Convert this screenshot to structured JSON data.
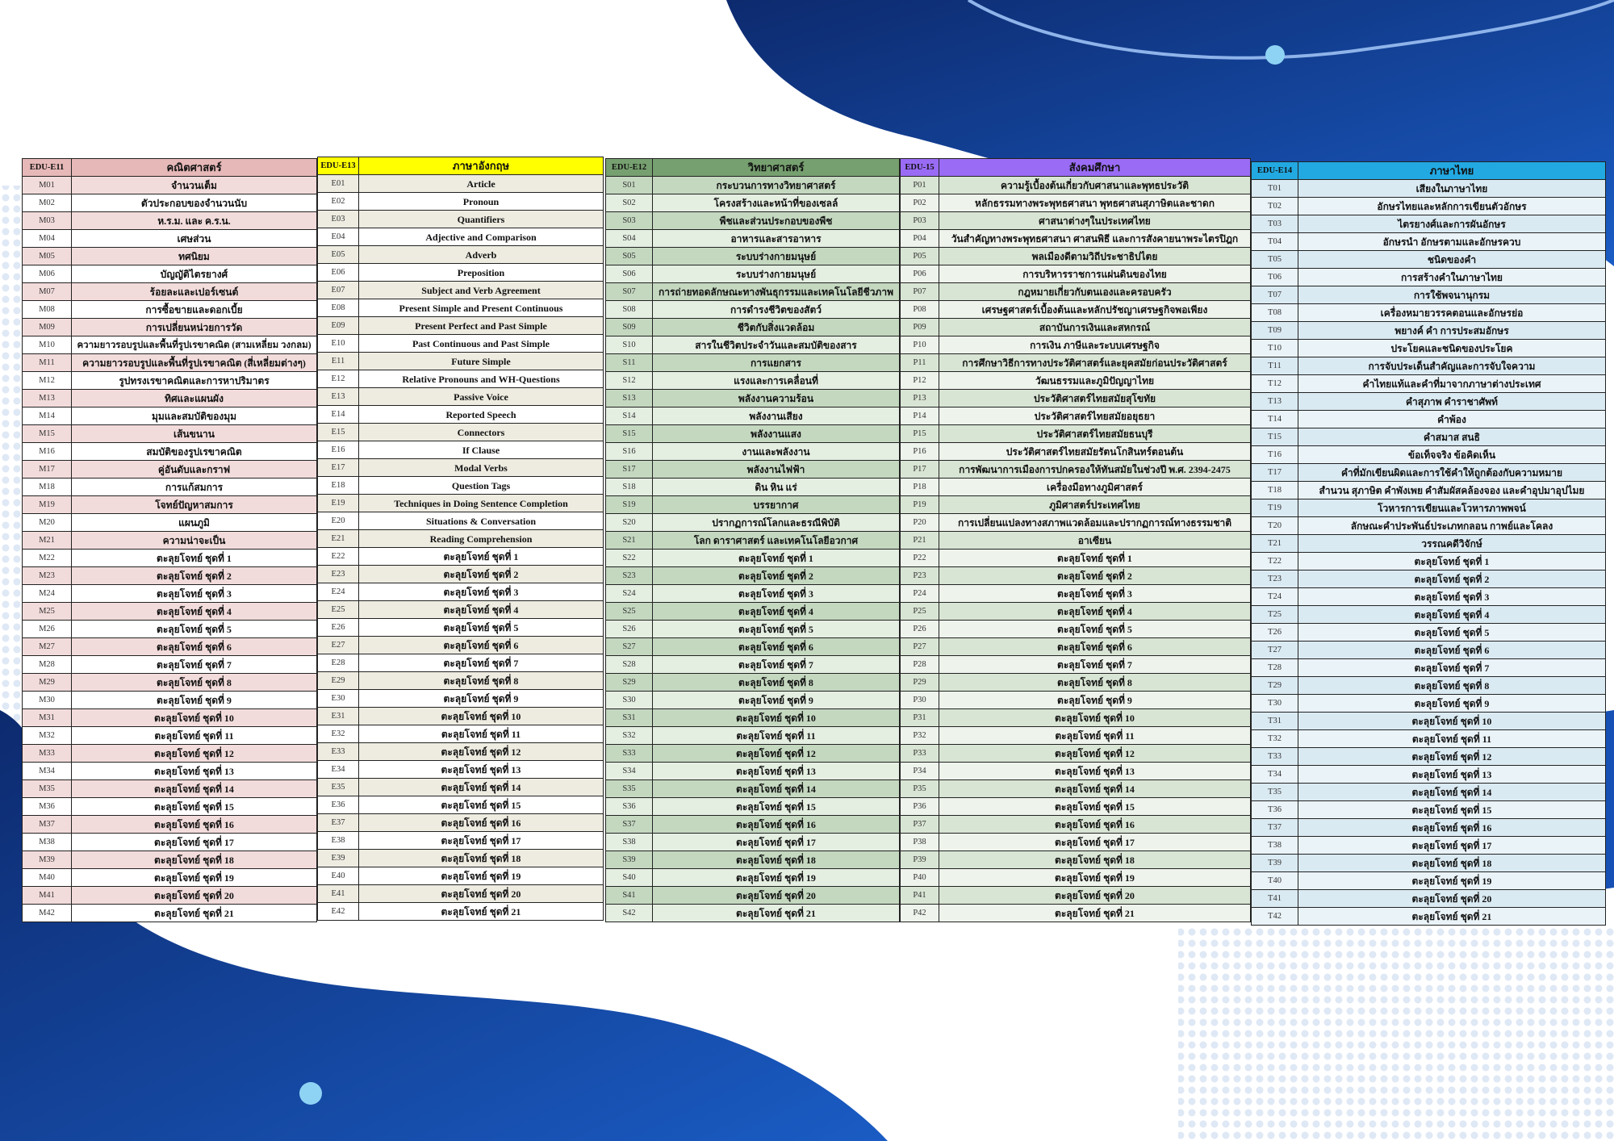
{
  "colors": {
    "background_dark": "#0d2a6e",
    "background_mid": "#1650b4",
    "accent_light": "#8fd3f4"
  },
  "tables": [
    {
      "code_header": "EDU-E11",
      "title": "คณิตศาสตร์",
      "header_color": "#e6b8b7",
      "row_a": "#f2dcdb",
      "row_b": "#ffffff",
      "rows": [
        [
          "M01",
          "จำนวนเต็ม"
        ],
        [
          "M02",
          "ตัวประกอบของจำนวนนับ"
        ],
        [
          "M03",
          "ห.ร.ม. และ ค.ร.น."
        ],
        [
          "M04",
          "เศษส่วน"
        ],
        [
          "M05",
          "ทศนิยม"
        ],
        [
          "M06",
          "บัญญัติไตรยางศ์"
        ],
        [
          "M07",
          "ร้อยละและเปอร์เซนต์"
        ],
        [
          "M08",
          "การซื้อขายและดอกเบี้ย"
        ],
        [
          "M09",
          "การเปลี่ยนหน่วยการวัด"
        ],
        [
          "M10",
          "ความยาวรอบรูปและพื้นที่รูปเรขาคณิต (สามเหลี่ยม วงกลม)"
        ],
        [
          "M11",
          "ความยาวรอบรูปและพื้นที่รูปเรขาคณิต (สี่เหลี่ยมต่างๆ)"
        ],
        [
          "M12",
          "รูปทรงเรขาคณิตและการหาปริมาตร"
        ],
        [
          "M13",
          "ทิศและแผนผัง"
        ],
        [
          "M14",
          "มุมและสมบัติของมุม"
        ],
        [
          "M15",
          "เส้นขนาน"
        ],
        [
          "M16",
          "สมบัติของรูปเรขาคณิต"
        ],
        [
          "M17",
          "คู่อันดับและกราฟ"
        ],
        [
          "M18",
          "การแก้สมการ"
        ],
        [
          "M19",
          "โจทย์ปัญหาสมการ"
        ],
        [
          "M20",
          "แผนภูมิ"
        ],
        [
          "M21",
          "ความน่าจะเป็น"
        ],
        [
          "M22",
          "ตะลุยโจทย์ ชุดที่ 1"
        ],
        [
          "M23",
          "ตะลุยโจทย์ ชุดที่ 2"
        ],
        [
          "M24",
          "ตะลุยโจทย์ ชุดที่ 3"
        ],
        [
          "M25",
          "ตะลุยโจทย์ ชุดที่ 4"
        ],
        [
          "M26",
          "ตะลุยโจทย์ ชุดที่ 5"
        ],
        [
          "M27",
          "ตะลุยโจทย์ ชุดที่ 6"
        ],
        [
          "M28",
          "ตะลุยโจทย์ ชุดที่ 7"
        ],
        [
          "M29",
          "ตะลุยโจทย์ ชุดที่ 8"
        ],
        [
          "M30",
          "ตะลุยโจทย์ ชุดที่ 9"
        ],
        [
          "M31",
          "ตะลุยโจทย์ ชุดที่ 10"
        ],
        [
          "M32",
          "ตะลุยโจทย์ ชุดที่ 11"
        ],
        [
          "M33",
          "ตะลุยโจทย์ ชุดที่ 12"
        ],
        [
          "M34",
          "ตะลุยโจทย์ ชุดที่ 13"
        ],
        [
          "M35",
          "ตะลุยโจทย์ ชุดที่ 14"
        ],
        [
          "M36",
          "ตะลุยโจทย์ ชุดที่ 15"
        ],
        [
          "M37",
          "ตะลุยโจทย์ ชุดที่ 16"
        ],
        [
          "M38",
          "ตะลุยโจทย์ ชุดที่ 17"
        ],
        [
          "M39",
          "ตะลุยโจทย์ ชุดที่ 18"
        ],
        [
          "M40",
          "ตะลุยโจทย์ ชุดที่ 19"
        ],
        [
          "M41",
          "ตะลุยโจทย์ ชุดที่ 20"
        ],
        [
          "M42",
          "ตะลุยโจทย์ ชุดที่ 21"
        ]
      ]
    },
    {
      "code_header": "EDU-E13",
      "title": "ภาษาอังกฤษ",
      "header_color": "#ffff00",
      "row_a": "#eeece1",
      "row_b": "#ffffff",
      "rows": [
        [
          "E01",
          "Article"
        ],
        [
          "E02",
          "Pronoun"
        ],
        [
          "E03",
          "Quantifiers"
        ],
        [
          "E04",
          "Adjective and Comparison"
        ],
        [
          "E05",
          "Adverb"
        ],
        [
          "E06",
          "Preposition"
        ],
        [
          "E07",
          "Subject and Verb Agreement"
        ],
        [
          "E08",
          "Present Simple and Present Continuous"
        ],
        [
          "E09",
          "Present Perfect and Past Simple"
        ],
        [
          "E10",
          "Past Continuous and Past Simple"
        ],
        [
          "E11",
          "Future Simple"
        ],
        [
          "E12",
          "Relative Pronouns and WH-Questions"
        ],
        [
          "E13",
          "Passive Voice"
        ],
        [
          "E14",
          "Reported Speech"
        ],
        [
          "E15",
          "Connectors"
        ],
        [
          "E16",
          "If Clause"
        ],
        [
          "E17",
          "Modal Verbs"
        ],
        [
          "E18",
          "Question Tags"
        ],
        [
          "E19",
          "Techniques in Doing Sentence Completion"
        ],
        [
          "E20",
          "Situations & Conversation"
        ],
        [
          "E21",
          "Reading Comprehension"
        ],
        [
          "E22",
          "ตะลุยโจทย์ ชุดที่ 1"
        ],
        [
          "E23",
          "ตะลุยโจทย์ ชุดที่ 2"
        ],
        [
          "E24",
          "ตะลุยโจทย์ ชุดที่ 3"
        ],
        [
          "E25",
          "ตะลุยโจทย์ ชุดที่ 4"
        ],
        [
          "E26",
          "ตะลุยโจทย์ ชุดที่ 5"
        ],
        [
          "E27",
          "ตะลุยโจทย์ ชุดที่ 6"
        ],
        [
          "E28",
          "ตะลุยโจทย์ ชุดที่ 7"
        ],
        [
          "E29",
          "ตะลุยโจทย์ ชุดที่ 8"
        ],
        [
          "E30",
          "ตะลุยโจทย์ ชุดที่ 9"
        ],
        [
          "E31",
          "ตะลุยโจทย์ ชุดที่ 10"
        ],
        [
          "E32",
          "ตะลุยโจทย์ ชุดที่ 11"
        ],
        [
          "E33",
          "ตะลุยโจทย์ ชุดที่ 12"
        ],
        [
          "E34",
          "ตะลุยโจทย์ ชุดที่ 13"
        ],
        [
          "E35",
          "ตะลุยโจทย์ ชุดที่ 14"
        ],
        [
          "E36",
          "ตะลุยโจทย์ ชุดที่ 15"
        ],
        [
          "E37",
          "ตะลุยโจทย์ ชุดที่ 16"
        ],
        [
          "E38",
          "ตะลุยโจทย์ ชุดที่ 17"
        ],
        [
          "E39",
          "ตะลุยโจทย์ ชุดที่ 18"
        ],
        [
          "E40",
          "ตะลุยโจทย์ ชุดที่ 19"
        ],
        [
          "E41",
          "ตะลุยโจทย์ ชุดที่ 20"
        ],
        [
          "E42",
          "ตะลุยโจทย์ ชุดที่ 21"
        ]
      ]
    },
    {
      "code_header": "EDU-E12",
      "title": "วิทยาศาสตร์",
      "header_color": "#76a06f",
      "row_a": "#c4d8c0",
      "row_b": "#e4eee1",
      "rows": [
        [
          "S01",
          "กระบวนการทางวิทยาศาสตร์"
        ],
        [
          "S02",
          "โครงสร้างและหน้าที่ของเซลล์"
        ],
        [
          "S03",
          "พืชและส่วนประกอบของพืช"
        ],
        [
          "S04",
          "อาหารและสารอาหาร"
        ],
        [
          "S05",
          "ระบบร่างกายมนุษย์"
        ],
        [
          "S06",
          "ระบบร่างกายมนุษย์"
        ],
        [
          "S07",
          "การถ่ายทอดลักษณะทางพันธุกรรมและเทคโนโลยีชีวภาพ"
        ],
        [
          "S08",
          "การดำรงชีวิตของสัตว์"
        ],
        [
          "S09",
          "ชีวิตกับสิ่งแวดล้อม"
        ],
        [
          "S10",
          "สารในชีวิตประจำวันและสมบัติของสาร"
        ],
        [
          "S11",
          "การแยกสาร"
        ],
        [
          "S12",
          "แรงและการเคลื่อนที่"
        ],
        [
          "S13",
          "พลังงานความร้อน"
        ],
        [
          "S14",
          "พลังงานเสียง"
        ],
        [
          "S15",
          "พลังงานแสง"
        ],
        [
          "S16",
          "งานและพลังงาน"
        ],
        [
          "S17",
          "พลังงานไฟฟ้า"
        ],
        [
          "S18",
          "ดิน หิน แร่"
        ],
        [
          "S19",
          "บรรยากาศ"
        ],
        [
          "S20",
          "ปรากฏการณ์โลกและธรณีพิบัติ"
        ],
        [
          "S21",
          "โลก ดาราศาสตร์ และเทคโนโลยีอวกาศ"
        ],
        [
          "S22",
          "ตะลุยโจทย์ ชุดที่ 1"
        ],
        [
          "S23",
          "ตะลุยโจทย์ ชุดที่ 2"
        ],
        [
          "S24",
          "ตะลุยโจทย์ ชุดที่ 3"
        ],
        [
          "S25",
          "ตะลุยโจทย์ ชุดที่ 4"
        ],
        [
          "S26",
          "ตะลุยโจทย์ ชุดที่ 5"
        ],
        [
          "S27",
          "ตะลุยโจทย์ ชุดที่ 6"
        ],
        [
          "S28",
          "ตะลุยโจทย์ ชุดที่ 7"
        ],
        [
          "S29",
          "ตะลุยโจทย์ ชุดที่ 8"
        ],
        [
          "S30",
          "ตะลุยโจทย์ ชุดที่ 9"
        ],
        [
          "S31",
          "ตะลุยโจทย์ ชุดที่ 10"
        ],
        [
          "S32",
          "ตะลุยโจทย์ ชุดที่ 11"
        ],
        [
          "S33",
          "ตะลุยโจทย์ ชุดที่ 12"
        ],
        [
          "S34",
          "ตะลุยโจทย์ ชุดที่ 13"
        ],
        [
          "S35",
          "ตะลุยโจทย์ ชุดที่ 14"
        ],
        [
          "S36",
          "ตะลุยโจทย์ ชุดที่ 15"
        ],
        [
          "S37",
          "ตะลุยโจทย์ ชุดที่ 16"
        ],
        [
          "S38",
          "ตะลุยโจทย์ ชุดที่ 17"
        ],
        [
          "S39",
          "ตะลุยโจทย์ ชุดที่ 18"
        ],
        [
          "S40",
          "ตะลุยโจทย์ ชุดที่ 19"
        ],
        [
          "S41",
          "ตะลุยโจทย์ ชุดที่ 20"
        ],
        [
          "S42",
          "ตะลุยโจทย์ ชุดที่ 21"
        ]
      ]
    },
    {
      "code_header": "EDU-15",
      "title": "สังคมศึกษา",
      "header_color": "#9a6cf5",
      "row_a": "#d9e5d4",
      "row_b": "#eef3ec",
      "rows": [
        [
          "P01",
          "ความรู้เบื้องต้นเกี่ยวกับศาสนาและพุทธประวัติ"
        ],
        [
          "P02",
          "หลักธรรมทางพระพุทธศาสนา พุทธศาสนสุภาษิตและชาดก"
        ],
        [
          "P03",
          "ศาสนาต่างๆในประเทศไทย"
        ],
        [
          "P04",
          "วันสำคัญทางพระพุทธศาสนา ศาสนพิธี และการสังคายนาพระไตรปิฎก"
        ],
        [
          "P05",
          "พลเมืองดีตามวิถีประชาธิปไตย"
        ],
        [
          "P06",
          "การบริหารราชการแผ่นดินของไทย"
        ],
        [
          "P07",
          "กฎหมายเกี่ยวกับตนเองและครอบครัว"
        ],
        [
          "P08",
          "เศรษฐศาสตร์เบื้องต้นและหลักปรัชญาเศรษฐกิจพอเพียง"
        ],
        [
          "P09",
          "สถาบันการเงินและสหกรณ์"
        ],
        [
          "P10",
          "การเงิน ภาษีและระบบเศรษฐกิจ"
        ],
        [
          "P11",
          "การศึกษาวิธีการทางประวัติศาสตร์และยุคสมัยก่อนประวัติศาสตร์"
        ],
        [
          "P12",
          "วัฒนธรรมและภูมิปัญญาไทย"
        ],
        [
          "P13",
          "ประวัติศาสตร์ไทยสมัยสุโขทัย"
        ],
        [
          "P14",
          "ประวัติศาสตร์ไทยสมัยอยุธยา"
        ],
        [
          "P15",
          "ประวัติศาสตร์ไทยสมัยธนบุรี"
        ],
        [
          "P16",
          "ประวัติศาสตร์ไทยสมัยรัตนโกสินทร์ตอนต้น"
        ],
        [
          "P17",
          "การพัฒนาการเมืองการปกครองให้ทันสมัยในช่วงปี พ.ศ. 2394-2475"
        ],
        [
          "P18",
          "เครื่องมือทางภูมิศาสตร์"
        ],
        [
          "P19",
          "ภูมิศาสตร์ประเทศไทย"
        ],
        [
          "P20",
          "การเปลี่ยนแปลงทางสภาพแวดล้อมและปรากฏการณ์ทางธรรมชาติ"
        ],
        [
          "P21",
          "อาเซียน"
        ],
        [
          "P22",
          "ตะลุยโจทย์ ชุดที่ 1"
        ],
        [
          "P23",
          "ตะลุยโจทย์ ชุดที่ 2"
        ],
        [
          "P24",
          "ตะลุยโจทย์ ชุดที่ 3"
        ],
        [
          "P25",
          "ตะลุยโจทย์ ชุดที่ 4"
        ],
        [
          "P26",
          "ตะลุยโจทย์ ชุดที่ 5"
        ],
        [
          "P27",
          "ตะลุยโจทย์ ชุดที่ 6"
        ],
        [
          "P28",
          "ตะลุยโจทย์ ชุดที่ 7"
        ],
        [
          "P29",
          "ตะลุยโจทย์ ชุดที่ 8"
        ],
        [
          "P30",
          "ตะลุยโจทย์ ชุดที่ 9"
        ],
        [
          "P31",
          "ตะลุยโจทย์ ชุดที่ 10"
        ],
        [
          "P32",
          "ตะลุยโจทย์ ชุดที่ 11"
        ],
        [
          "P33",
          "ตะลุยโจทย์ ชุดที่ 12"
        ],
        [
          "P34",
          "ตะลุยโจทย์ ชุดที่ 13"
        ],
        [
          "P35",
          "ตะลุยโจทย์ ชุดที่ 14"
        ],
        [
          "P36",
          "ตะลุยโจทย์ ชุดที่ 15"
        ],
        [
          "P37",
          "ตะลุยโจทย์ ชุดที่ 16"
        ],
        [
          "P38",
          "ตะลุยโจทย์ ชุดที่ 17"
        ],
        [
          "P39",
          "ตะลุยโจทย์ ชุดที่ 18"
        ],
        [
          "P40",
          "ตะลุยโจทย์ ชุดที่ 19"
        ],
        [
          "P41",
          "ตะลุยโจทย์ ชุดที่ 20"
        ],
        [
          "P42",
          "ตะลุยโจทย์ ชุดที่ 21"
        ]
      ]
    },
    {
      "code_header": "EDU-E14",
      "title": "ภาษาไทย",
      "header_color": "#22a9e2",
      "row_a": "#daeaf2",
      "row_b": "#eaf3f8",
      "rows": [
        [
          "T01",
          "เสียงในภาษาไทย"
        ],
        [
          "T02",
          "อักษรไทยและหลักการเขียนตัวอักษร"
        ],
        [
          "T03",
          "ไตรยางศ์และการผันอักษร"
        ],
        [
          "T04",
          "อักษรนำ อักษรตามและอักษรควบ"
        ],
        [
          "T05",
          "ชนิดของคำ"
        ],
        [
          "T06",
          "การสร้างคำในภาษาไทย"
        ],
        [
          "T07",
          "การใช้พจนานุกรม"
        ],
        [
          "T08",
          "เครื่องหมายวรรคตอนและอักษรย่อ"
        ],
        [
          "T09",
          "พยางค์ คำ การประสมอักษร"
        ],
        [
          "T10",
          "ประโยคและชนิดของประโยค"
        ],
        [
          "T11",
          "การจับประเด็นสำคัญและการจับใจความ"
        ],
        [
          "T12",
          "คำไทยแท้และคำที่มาจากภาษาต่างประเทศ"
        ],
        [
          "T13",
          "คำสุภาพ คำราชาศัพท์"
        ],
        [
          "T14",
          "คำพ้อง"
        ],
        [
          "T15",
          "คำสมาส สนธิ"
        ],
        [
          "T16",
          "ข้อเท็จจริง ข้อคิดเห็น"
        ],
        [
          "T17",
          "คำที่มักเขียนผิดและการใช้คำให้ถูกต้องกับความหมาย"
        ],
        [
          "T18",
          "สำนวน สุภาษิต คำพังเพย คำสัมผัสคล้องจอง และคำอุปมาอุปไมย"
        ],
        [
          "T19",
          "โวหารการเขียนและโวหารภาพพจน์"
        ],
        [
          "T20",
          "ลักษณะคำประพันธ์ประเภทกลอน กาพย์และโคลง"
        ],
        [
          "T21",
          "วรรณคดีวิจักษ์"
        ],
        [
          "T22",
          "ตะลุยโจทย์ ชุดที่ 1"
        ],
        [
          "T23",
          "ตะลุยโจทย์ ชุดที่ 2"
        ],
        [
          "T24",
          "ตะลุยโจทย์ ชุดที่ 3"
        ],
        [
          "T25",
          "ตะลุยโจทย์ ชุดที่ 4"
        ],
        [
          "T26",
          "ตะลุยโจทย์ ชุดที่ 5"
        ],
        [
          "T27",
          "ตะลุยโจทย์ ชุดที่ 6"
        ],
        [
          "T28",
          "ตะลุยโจทย์ ชุดที่ 7"
        ],
        [
          "T29",
          "ตะลุยโจทย์ ชุดที่ 8"
        ],
        [
          "T30",
          "ตะลุยโจทย์ ชุดที่ 9"
        ],
        [
          "T31",
          "ตะลุยโจทย์ ชุดที่ 10"
        ],
        [
          "T32",
          "ตะลุยโจทย์ ชุดที่ 11"
        ],
        [
          "T33",
          "ตะลุยโจทย์ ชุดที่ 12"
        ],
        [
          "T34",
          "ตะลุยโจทย์ ชุดที่ 13"
        ],
        [
          "T35",
          "ตะลุยโจทย์ ชุดที่ 14"
        ],
        [
          "T36",
          "ตะลุยโจทย์ ชุดที่ 15"
        ],
        [
          "T37",
          "ตะลุยโจทย์ ชุดที่ 16"
        ],
        [
          "T38",
          "ตะลุยโจทย์ ชุดที่ 17"
        ],
        [
          "T39",
          "ตะลุยโจทย์ ชุดที่ 18"
        ],
        [
          "T40",
          "ตะลุยโจทย์ ชุดที่ 19"
        ],
        [
          "T41",
          "ตะลุยโจทย์ ชุดที่ 20"
        ],
        [
          "T42",
          "ตะลุยโจทย์ ชุดที่ 21"
        ]
      ]
    }
  ]
}
